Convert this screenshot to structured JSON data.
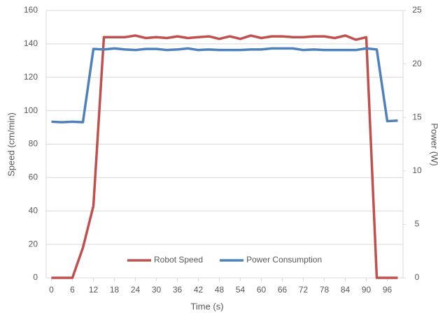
{
  "chart_data": {
    "type": "line",
    "x_label": "Time (s)",
    "y_label": "Speed (cm/min)",
    "y2_label": "Power (W)",
    "x": [
      0,
      3,
      6,
      9,
      12,
      15,
      18,
      21,
      24,
      27,
      30,
      33,
      36,
      39,
      42,
      45,
      48,
      51,
      54,
      57,
      60,
      63,
      66,
      69,
      72,
      75,
      78,
      81,
      84,
      87,
      90,
      93,
      96,
      99
    ],
    "series": [
      {
        "name": "Robot Speed",
        "color": "#c0504d",
        "values": [
          0,
          0,
          0,
          18,
          43,
          144,
          144,
          144,
          145,
          143.5,
          144,
          143.5,
          144.5,
          143.5,
          144,
          144.5,
          143,
          144.5,
          143,
          145,
          143.5,
          144.5,
          144.5,
          144,
          144,
          144.5,
          144.5,
          143.5,
          145,
          142.5,
          144,
          0,
          0,
          0
        ]
      },
      {
        "name": "Power Consumption",
        "color": "#4f81bd",
        "axis": "y2",
        "values": [
          14.6,
          14.55,
          14.6,
          14.55,
          21.4,
          21.35,
          21.45,
          21.35,
          21.3,
          21.4,
          21.4,
          21.3,
          21.35,
          21.45,
          21.3,
          21.35,
          21.3,
          21.3,
          21.3,
          21.35,
          21.35,
          21.45,
          21.45,
          21.45,
          21.3,
          21.35,
          21.3,
          21.3,
          21.3,
          21.3,
          21.45,
          21.35,
          14.65,
          14.7
        ]
      }
    ],
    "xlim": [
      -1.5,
      100.5
    ],
    "xticks": [
      0,
      6,
      12,
      18,
      24,
      30,
      36,
      42,
      48,
      54,
      60,
      66,
      72,
      78,
      84,
      90,
      96
    ],
    "ylim": [
      0,
      160
    ],
    "yticks": [
      0,
      20,
      40,
      60,
      80,
      100,
      120,
      140,
      160
    ],
    "y2lim": [
      0,
      25
    ],
    "y2ticks": [
      0,
      5,
      10,
      15,
      20,
      25
    ],
    "grid": true,
    "legend": "bottom"
  }
}
